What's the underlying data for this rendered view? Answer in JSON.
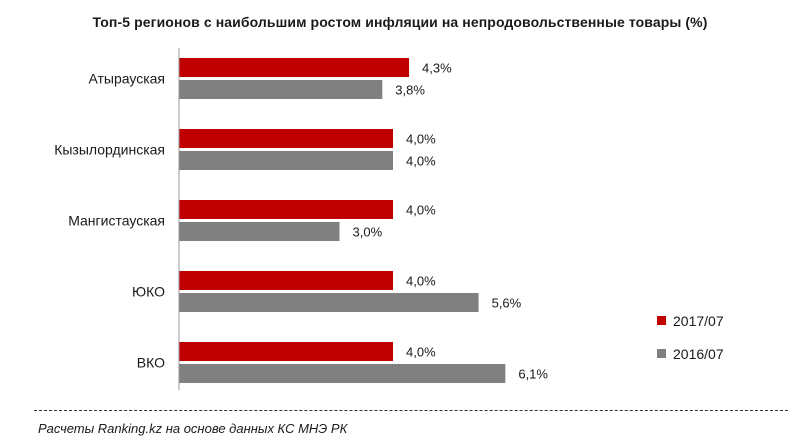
{
  "title": "Топ-5 регионов с наибольшим ростом инфляции на непродовольственные товары (%)",
  "source_note": "Расчеты Ranking.kz на основе данных КС МНЭ РК",
  "colors": {
    "series_2017": "#c00000",
    "series_2016": "#808080"
  },
  "legend_position": "right",
  "chart_data": {
    "type": "bar",
    "orientation": "horizontal",
    "title": "Топ-5 регионов с наибольшим ростом инфляции на непродовольственные товары (%)",
    "categories": [
      "Атырауская",
      "Кызылординская",
      "Мангистауская",
      "ЮКО",
      "ВКО"
    ],
    "series": [
      {
        "name": "2017/07",
        "color": "#c00000",
        "values": [
          4.3,
          4.0,
          4.0,
          4.0,
          4.0
        ],
        "labels": [
          "4,3%",
          "4,0%",
          "4,0%",
          "4,0%",
          "4,0%"
        ]
      },
      {
        "name": "2016/07",
        "color": "#808080",
        "values": [
          3.8,
          4.0,
          3.0,
          5.6,
          6.1
        ],
        "labels": [
          "3,8%",
          "4,0%",
          "3,0%",
          "5,6%",
          "6,1%"
        ]
      }
    ],
    "xlabel": "",
    "ylabel": "",
    "grid": false,
    "legend": "right"
  }
}
